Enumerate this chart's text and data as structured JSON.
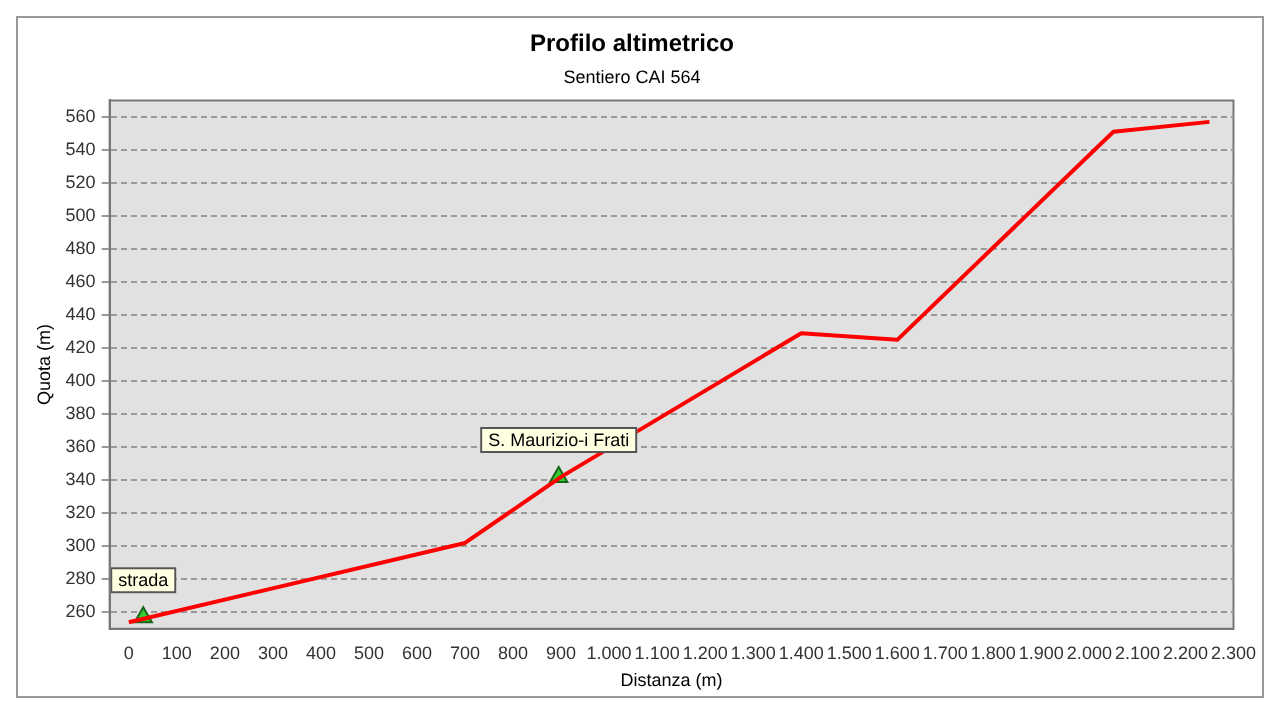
{
  "chart_data": {
    "type": "line",
    "title": "Profilo altimetrico",
    "subtitle": "Sentiero CAI 564",
    "xlabel": "Distanza (m)",
    "ylabel": "Quota (m)",
    "series": [
      {
        "color": "#ff0000",
        "x": [
          0,
          700,
          900,
          1400,
          1600,
          2050,
          2250
        ],
        "values": [
          254,
          302,
          342,
          429,
          425,
          551,
          557
        ],
        "marker": "none"
      },
      {
        "type": "scatter",
        "color": "#33cc33",
        "x": [
          30,
          895
        ],
        "values": [
          257,
          342
        ],
        "marker": "triangle"
      }
    ],
    "xlim": [
      -40,
      2300
    ],
    "ylim": [
      250,
      570
    ],
    "xticks": [
      0,
      100,
      200,
      300,
      400,
      500,
      600,
      700,
      800,
      900,
      {
        "value": 1000,
        "label": "1.000"
      },
      {
        "value": 1100,
        "label": "1.100"
      },
      {
        "value": 1200,
        "label": "1.200"
      },
      {
        "value": 1300,
        "label": "1.300"
      },
      {
        "value": 1400,
        "label": "1.400"
      },
      {
        "value": 1500,
        "label": "1.500"
      },
      {
        "value": 1600,
        "label": "1.600"
      },
      {
        "value": 1700,
        "label": "1.700"
      },
      {
        "value": 1800,
        "label": "1.800"
      },
      {
        "value": 1900,
        "label": "1.900"
      },
      {
        "value": 2000,
        "label": "2.000"
      },
      {
        "value": 2100,
        "label": "2.100"
      },
      {
        "value": 2200,
        "label": "2.200"
      },
      {
        "value": 2300,
        "label": "2.300"
      }
    ],
    "yticks": [
      260,
      280,
      300,
      320,
      340,
      360,
      380,
      400,
      420,
      440,
      460,
      480,
      500,
      520,
      540,
      560
    ],
    "annotations": [
      {
        "text": "strada",
        "x": 30,
        "y": 257
      },
      {
        "text": "S. Maurizio-i Frati",
        "x": 895,
        "y": 342
      }
    ],
    "grid": "y",
    "legend": false
  }
}
